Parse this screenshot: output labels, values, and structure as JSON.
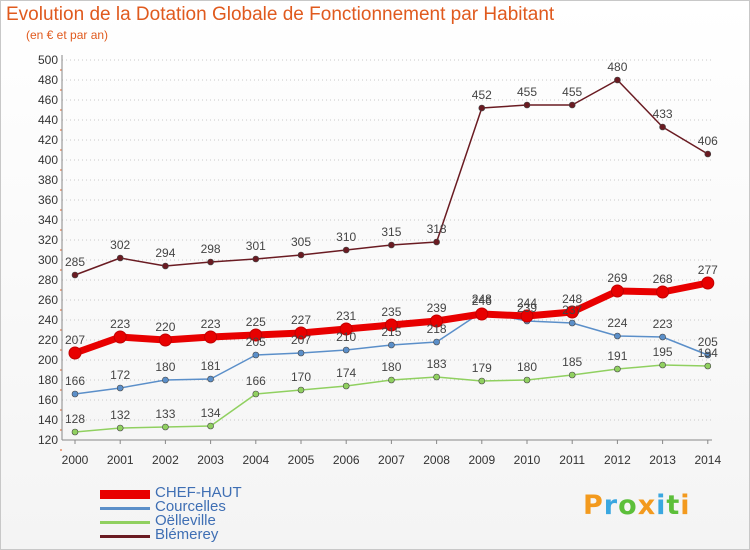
{
  "chart_data": {
    "type": "line",
    "title": "Evolution de la Dotation Globale de Fonctionnement par Habitant",
    "subtitle": "(en € et par an)",
    "xlabel": "",
    "ylabel": "",
    "ylim": [
      120,
      500
    ],
    "ytick_step": 20,
    "grid": "horizontal dotted",
    "legend_position": "bottom-left",
    "categories": [
      "2000",
      "2001",
      "2002",
      "2003",
      "2004",
      "2005",
      "2006",
      "2007",
      "2008",
      "2009",
      "2010",
      "2011",
      "2012",
      "2013",
      "2014"
    ],
    "series": [
      {
        "name": "CHEF-HAUT",
        "color": "#e80000",
        "values": [
          207,
          223,
          220,
          223,
          225,
          227,
          231,
          235,
          239,
          246,
          244,
          248,
          269,
          268,
          277
        ]
      },
      {
        "name": "Courcelles",
        "color": "#5b8fc9",
        "values": [
          166,
          172,
          180,
          181,
          205,
          207,
          210,
          215,
          218,
          248,
          239,
          237,
          224,
          223,
          205
        ]
      },
      {
        "name": "Oëlleville",
        "color": "#90d060",
        "values": [
          128,
          132,
          133,
          134,
          166,
          170,
          174,
          180,
          183,
          179,
          180,
          185,
          191,
          195,
          194
        ]
      },
      {
        "name": "Blémerey",
        "color": "#6a1b22",
        "values": [
          285,
          302,
          294,
          298,
          301,
          305,
          310,
          315,
          318,
          452,
          455,
          455,
          480,
          433,
          406
        ]
      }
    ],
    "data_labels": {
      "CHEF-HAUT": [
        "207",
        "223",
        "220",
        "223",
        "225",
        "227",
        "231",
        "235",
        "239",
        "246",
        "244",
        "248",
        "269",
        "268",
        "277"
      ],
      "Courcelles": [
        "166",
        "172",
        "180",
        "181",
        "205",
        "207",
        "210",
        "215",
        "218",
        "248",
        "239",
        "237",
        "224",
        "223",
        "205"
      ],
      "Oëlleville": [
        "128",
        "132",
        "133",
        "134",
        "166",
        "170",
        "174",
        "180",
        "183",
        "179",
        "180",
        "185",
        "191",
        "195",
        "194"
      ],
      "Blémerey": [
        "285",
        "302",
        "294",
        "298",
        "301",
        "305",
        "310",
        "315",
        "318",
        "452",
        "455",
        "455",
        "480",
        "433",
        "406"
      ]
    }
  },
  "logo": {
    "text": "Proxiti",
    "letters": [
      "P",
      "r",
      "o",
      "x",
      "i",
      "t",
      "i"
    ],
    "colors": [
      "#f39a1e",
      "#3aa7e0",
      "#5cbf3a",
      "#f39a1e",
      "#3aa7e0",
      "#5cbf3a",
      "#f39a1e"
    ]
  }
}
